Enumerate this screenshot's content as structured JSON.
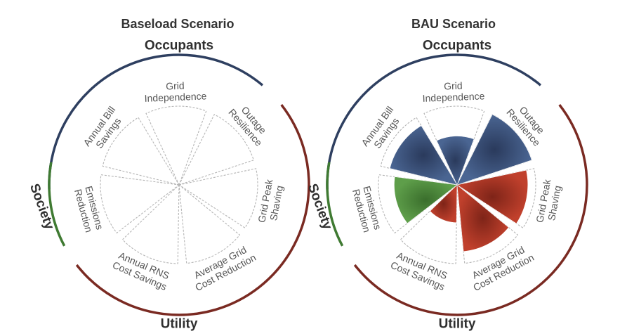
{
  "chart_data": [
    {
      "type": "polar-area",
      "title": "Baseload Scenario",
      "categories": [
        "Grid Independence",
        "Outage Resilience",
        "Grid Peak Shaving",
        "Average Grid Cost Reduction",
        "Annual RNS Cost Savings",
        "Emissions Reduction",
        "Annual Bill Savings"
      ],
      "values": [
        0,
        0,
        0,
        0,
        0,
        0,
        0
      ],
      "category_groups": [
        "Occupants",
        "Occupants",
        "Utility",
        "Utility",
        "Utility",
        "Society",
        "Occupants"
      ],
      "rlim": [
        0,
        1
      ],
      "groups": [
        {
          "name": "Occupants",
          "color": "#2e3f60"
        },
        {
          "name": "Utility",
          "color": "#7a2a22"
        },
        {
          "name": "Society",
          "color": "#3f7a32"
        }
      ]
    },
    {
      "type": "polar-area",
      "title": "BAU Scenario",
      "categories": [
        "Grid Independence",
        "Outage Resilience",
        "Grid Peak Shaving",
        "Average Grid Cost Reduction",
        "Annual RNS Cost Savings",
        "Emissions Reduction",
        "Annual Bill Savings"
      ],
      "values": [
        0.62,
        1.0,
        0.9,
        0.85,
        0.48,
        0.8,
        0.88
      ],
      "category_groups": [
        "Occupants",
        "Occupants",
        "Utility",
        "Utility",
        "Utility",
        "Society",
        "Occupants"
      ],
      "rlim": [
        0,
        1
      ],
      "groups": [
        {
          "name": "Occupants",
          "color": "#2e3f60"
        },
        {
          "name": "Utility",
          "color": "#7a2a22"
        },
        {
          "name": "Society",
          "color": "#3f7a32"
        }
      ]
    }
  ],
  "fill_colors": {
    "Occupants": "#3d5580",
    "Utility": "#a83222",
    "Society": "#4d8a3c"
  },
  "arc_colors": {
    "Occupants": "#2e3f60",
    "Utility": "#7a2a22",
    "Society": "#3f7a32"
  }
}
